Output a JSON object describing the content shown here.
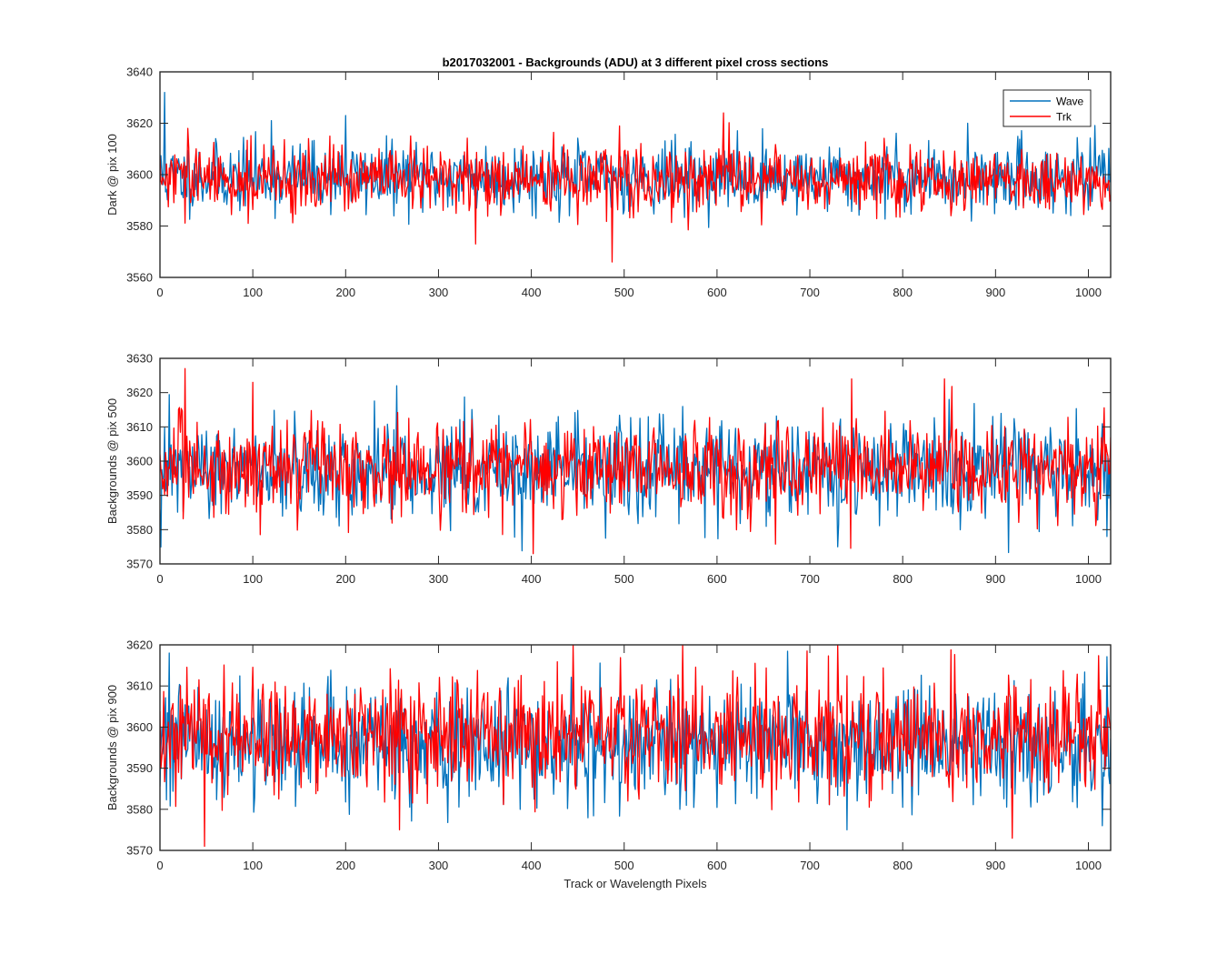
{
  "chart_data": {
    "type": "line",
    "title": "b2017032001 - Backgrounds (ADU) at 3 different pixel cross sections",
    "xlabel": "Track or Wavelength Pixels",
    "legend": {
      "location": "top-right",
      "entries": [
        "Wave",
        "Trk"
      ]
    },
    "colors": {
      "Wave": "#0072BD",
      "Trk": "#FF0000"
    },
    "panels": [
      {
        "ylabel": "Dark @ pix 100",
        "xlim": [
          0,
          1024
        ],
        "ylim": [
          3560,
          3640
        ],
        "xticks": [
          0,
          100,
          200,
          300,
          400,
          500,
          600,
          700,
          800,
          900,
          1000
        ],
        "yticks": [
          3560,
          3580,
          3600,
          3620,
          3640
        ],
        "series": [
          {
            "name": "Wave",
            "mean": 3599,
            "sd": 6.5,
            "seed": 11,
            "spikes": [
              [
                5,
                3632
              ],
              [
                200,
                3623
              ],
              [
                120,
                3621
              ],
              [
                870,
                3620
              ]
            ]
          },
          {
            "name": "Trk",
            "mean": 3598,
            "sd": 6.5,
            "seed": 29,
            "spikes": [
              [
                487,
                3566
              ],
              [
                607,
                3624
              ],
              [
                340,
                3573
              ],
              [
                30,
                3618
              ]
            ]
          }
        ]
      },
      {
        "ylabel": "Backgrounds @ pix 500",
        "xlim": [
          0,
          1024
        ],
        "ylim": [
          3570,
          3630
        ],
        "xticks": [
          0,
          100,
          200,
          300,
          400,
          500,
          600,
          700,
          800,
          900,
          1000
        ],
        "yticks": [
          3570,
          3580,
          3590,
          3600,
          3610,
          3620,
          3630
        ],
        "series": [
          {
            "name": "Wave",
            "mean": 3597,
            "sd": 7,
            "seed": 47,
            "spikes": [
              [
                255,
                3622
              ],
              [
                730,
                3575
              ],
              [
                850,
                3618
              ],
              [
                1020,
                3578
              ]
            ]
          },
          {
            "name": "Trk",
            "mean": 3598,
            "sd": 7,
            "seed": 83,
            "spikes": [
              [
                27,
                3627
              ],
              [
                402,
                3573
              ],
              [
                745,
                3624
              ],
              [
                845,
                3624
              ],
              [
                100,
                3623
              ]
            ]
          }
        ]
      },
      {
        "ylabel": "Backgrounds @ pix 900",
        "xlim": [
          0,
          1024
        ],
        "ylim": [
          3570,
          3620
        ],
        "xticks": [
          0,
          100,
          200,
          300,
          400,
          500,
          600,
          700,
          800,
          900,
          1000
        ],
        "yticks": [
          3570,
          3580,
          3590,
          3600,
          3610,
          3620
        ],
        "series": [
          {
            "name": "Wave",
            "mean": 3596,
            "sd": 7,
            "seed": 101,
            "spikes": [
              [
                10,
                3618
              ],
              [
                740,
                3575
              ],
              [
                1015,
                3576
              ],
              [
                560,
                3580
              ]
            ]
          },
          {
            "name": "Trk",
            "mean": 3598,
            "sd": 7,
            "seed": 131,
            "spikes": [
              [
                48,
                3571
              ],
              [
                445,
                3620
              ],
              [
                563,
                3620
              ],
              [
                730,
                3620
              ],
              [
                258,
                3575
              ]
            ]
          }
        ]
      }
    ]
  }
}
